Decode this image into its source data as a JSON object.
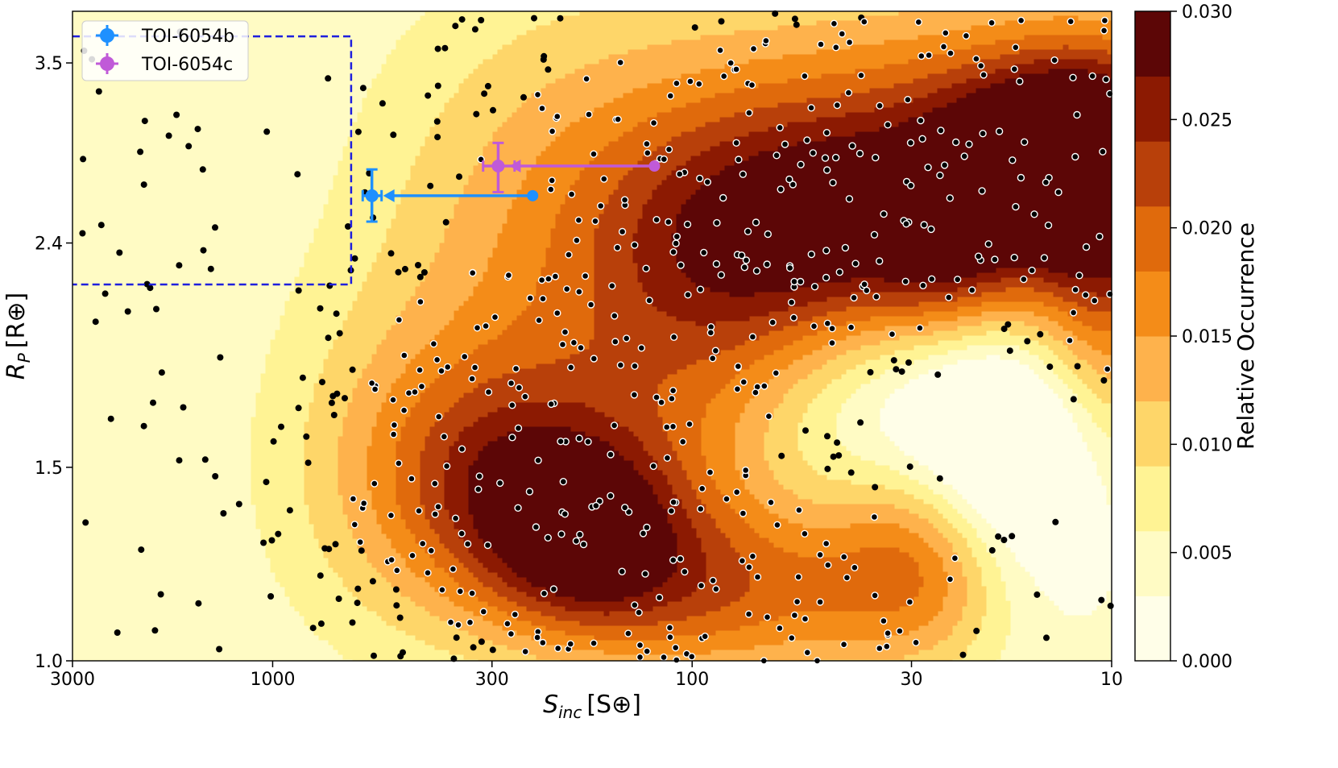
{
  "chart_data": {
    "type": "scatter",
    "subtype": "contour-density-with-scatter",
    "xlabel_main": "S",
    "xlabel_sub": "inc",
    "xlabel_unit": "[S⊕]",
    "ylabel_main": "R",
    "ylabel_sub": "P",
    "ylabel_unit": "[R⊕]",
    "x_scale": "log",
    "x_reversed": true,
    "xlim": [
      3000,
      10
    ],
    "y_scale": "log",
    "ylim": [
      1.0,
      3.9
    ],
    "x_ticks": [
      {
        "value": 3000,
        "label": "3000"
      },
      {
        "value": 1000,
        "label": "1000"
      },
      {
        "value": 300,
        "label": "300"
      },
      {
        "value": 100,
        "label": "100"
      },
      {
        "value": 30,
        "label": "30"
      },
      {
        "value": 10,
        "label": "10"
      }
    ],
    "y_ticks": [
      {
        "value": 1.0,
        "label": "1.0"
      },
      {
        "value": 1.5,
        "label": "1.5"
      },
      {
        "value": 2.4,
        "label": "2.4"
      },
      {
        "value": 3.5,
        "label": "3.5"
      }
    ],
    "colorbar": {
      "label": "Relative Occurrence",
      "range": [
        0.0,
        0.03
      ],
      "levels": [
        0.0,
        0.003,
        0.006,
        0.009,
        0.012,
        0.015,
        0.018,
        0.021,
        0.024,
        0.027,
        0.03
      ],
      "colors": [
        "#fffee8",
        "#fffbc4",
        "#fff394",
        "#fed669",
        "#feb24c",
        "#f48c18",
        "#e06a0c",
        "#b8400a",
        "#8c1a02",
        "#5c0606"
      ],
      "ticks": [
        {
          "value": 0.0,
          "label": "0.000"
        },
        {
          "value": 0.005,
          "label": "0.005"
        },
        {
          "value": 0.01,
          "label": "0.010"
        },
        {
          "value": 0.015,
          "label": "0.015"
        },
        {
          "value": 0.02,
          "label": "0.020"
        },
        {
          "value": 0.025,
          "label": "0.025"
        },
        {
          "value": 0.03,
          "label": "0.030"
        }
      ]
    },
    "density_peaks": [
      {
        "s": 40,
        "r": 2.5,
        "amp": 0.023,
        "sx": 0.32,
        "sy": 0.08
      },
      {
        "s": 24,
        "r": 2.3,
        "amp": 0.008,
        "sx": 0.12,
        "sy": 0.05
      },
      {
        "s": 13,
        "r": 2.85,
        "amp": 0.025,
        "sx": 0.2,
        "sy": 0.06
      },
      {
        "s": 10,
        "r": 2.3,
        "amp": 0.016,
        "sx": 0.15,
        "sy": 0.12
      },
      {
        "s": 100,
        "r": 1.9,
        "amp": 0.012,
        "sx": 0.28,
        "sy": 0.14
      },
      {
        "s": 180,
        "r": 1.3,
        "amp": 0.016,
        "sx": 0.17,
        "sy": 0.06
      },
      {
        "s": 280,
        "r": 1.45,
        "amp": 0.013,
        "sx": 0.22,
        "sy": 0.08
      },
      {
        "s": 80,
        "r": 1.15,
        "amp": 0.013,
        "sx": 0.3,
        "sy": 0.06
      },
      {
        "s": 28,
        "r": 1.25,
        "amp": 0.014,
        "sx": 0.16,
        "sy": 0.07
      },
      {
        "s": 500,
        "r": 1.5,
        "amp": 0.006,
        "sx": 0.24,
        "sy": 0.12
      },
      {
        "s": 150,
        "r": 2.9,
        "amp": 0.006,
        "sx": 0.35,
        "sy": 0.13
      },
      {
        "s": 20,
        "r": 3.4,
        "amp": 0.009,
        "sx": 0.4,
        "sy": 0.08
      },
      {
        "s": 300,
        "r": 2.2,
        "amp": 0.004,
        "sx": 0.25,
        "sy": 0.15
      }
    ],
    "density_dips": [
      {
        "s": 18,
        "r": 1.55,
        "amp": -0.013,
        "sx": 0.17,
        "sy": 0.09
      },
      {
        "s": 40,
        "r": 1.7,
        "amp": -0.006,
        "sx": 0.2,
        "sy": 0.08
      }
    ],
    "region_box": {
      "x_range": [
        3000,
        650
      ],
      "y_range": [
        2.2,
        3.7
      ],
      "style": "dashed",
      "color": "#1f1fdd"
    },
    "background_points": {
      "marker": "filled dot, black; white-outlined inside high-density regions",
      "x_range": [
        2900,
        10
      ],
      "y_range": [
        1.0,
        3.9
      ],
      "approx_count": 640
    },
    "series": [
      {
        "name": "TOI-6054b",
        "color": "#1e90ff",
        "x": 580,
        "y": 2.65,
        "yerr": [
          0.14,
          0.15
        ],
        "xerr": [
          30,
          30
        ],
        "upper_limit_arrow_from": 240
      },
      {
        "name": "TOI-6054c",
        "color": "#c05ad8",
        "x": 290,
        "y": 2.82,
        "yerr": [
          0.15,
          0.14
        ],
        "xerr": [
          25,
          25
        ],
        "upper_limit_arrow_from": 123
      }
    ],
    "legend": {
      "location": "top-left",
      "entries": [
        "TOI-6054b",
        "TOI-6054c"
      ]
    }
  }
}
